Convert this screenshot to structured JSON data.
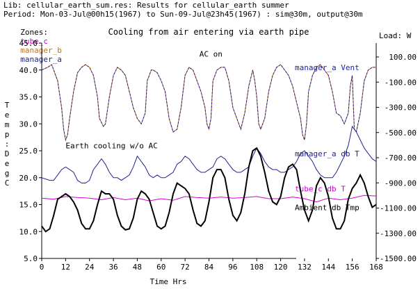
{
  "header": {
    "lib_line": "Lib: cellular_earth_sum.res: Results for cellular_earth summer",
    "period_line": "Period: Mon-03-Jul@00h15(1967) to Sun-09-Jul@23h45(1967) : sim@30m, output@30m",
    "zones_label": "Zones:",
    "zones": [
      {
        "name": "tube_c",
        "color": "#d000d0"
      },
      {
        "name": "manager_b",
        "color": "#c07020"
      },
      {
        "name": "manager_a",
        "color": "#202090"
      }
    ]
  },
  "chart_data": {
    "type": "line",
    "title": "Cooling from air entering via earth pipe",
    "xlabel": "Time Hrs",
    "ylabel": "Temp: DegC",
    "y2label": "Load: W",
    "xlim": [
      0,
      168
    ],
    "ylim": [
      5,
      45
    ],
    "y2lim": [
      -1500,
      100
    ],
    "xticks": [
      0,
      12,
      24,
      36,
      48,
      60,
      72,
      84,
      96,
      108,
      120,
      132,
      144,
      156,
      168
    ],
    "yticks": [
      "5.0",
      "10.0",
      "15.0",
      "20.0",
      "25.0",
      "30.0",
      "35.0",
      "40.0",
      "45.0"
    ],
    "y2ticks": [
      "100.00",
      "-100.00",
      "-300.00",
      "-500.00",
      "-700.00",
      "-900.00",
      "-1100.00",
      "-1300.00",
      "-1500.00"
    ],
    "annotations": [
      {
        "text": "AC on",
        "x": 85,
        "y": 43
      },
      {
        "text": "Earth cooling w/o AC",
        "x": 12,
        "y": 26
      }
    ],
    "series": [
      {
        "name": "manager_a Vent",
        "color": "#2020a0",
        "dash": true,
        "label_y": 40.5,
        "x": [
          0,
          3,
          5,
          6,
          8,
          10,
          11,
          12,
          13,
          14,
          16,
          18,
          20,
          22,
          24,
          26,
          28,
          29,
          31,
          32,
          34,
          36,
          38,
          40,
          42,
          44,
          46,
          48,
          50,
          52,
          53,
          55,
          56,
          58,
          60,
          62,
          64,
          66,
          68,
          70,
          72,
          74,
          76,
          78,
          80,
          82,
          83,
          84,
          85,
          86,
          88,
          90,
          92,
          94,
          96,
          98,
          100,
          102,
          104,
          106,
          107,
          108,
          109,
          110,
          112,
          114,
          116,
          118,
          120,
          122,
          124,
          126,
          128,
          130,
          131,
          132,
          133,
          134,
          136,
          138,
          140,
          142,
          144,
          146,
          148,
          150,
          152,
          154,
          155,
          156,
          157,
          158,
          160,
          162,
          164,
          166,
          168
        ],
        "y": [
          40,
          40.5,
          41,
          40,
          38,
          33,
          29,
          27,
          28,
          31,
          36,
          39.5,
          40.5,
          41,
          40.5,
          39,
          35,
          31,
          29.5,
          30,
          35,
          39,
          40.5,
          40,
          39,
          36,
          33,
          31,
          30,
          32,
          38,
          40,
          40,
          39.5,
          38,
          36,
          31,
          28.5,
          29,
          33,
          39,
          40.5,
          40,
          38,
          36,
          33,
          30,
          29,
          31,
          38,
          40,
          40.5,
          40.5,
          38,
          33,
          31,
          29,
          32,
          37,
          40,
          38,
          35,
          30,
          29,
          31,
          36,
          39,
          40.5,
          41,
          40,
          39,
          37,
          34,
          31,
          28,
          27,
          30,
          36,
          39,
          40.5,
          41,
          40,
          39,
          36,
          32,
          31.5,
          30,
          32,
          37,
          39,
          29,
          28.5,
          32,
          38,
          40,
          40.5,
          40.5
        ]
      },
      {
        "name": "manager_a db T",
        "color": "#202090",
        "dash": false,
        "label_y": 24.5,
        "x": [
          0,
          4,
          6,
          8,
          10,
          12,
          14,
          16,
          18,
          20,
          22,
          24,
          26,
          28,
          30,
          32,
          34,
          36,
          38,
          40,
          42,
          44,
          46,
          48,
          50,
          52,
          54,
          56,
          58,
          60,
          62,
          64,
          66,
          68,
          70,
          72,
          74,
          76,
          78,
          80,
          82,
          84,
          86,
          88,
          90,
          92,
          94,
          96,
          98,
          100,
          102,
          104,
          106,
          108,
          110,
          112,
          114,
          116,
          118,
          120,
          122,
          124,
          126,
          128,
          130,
          132,
          134,
          136,
          138,
          140,
          142,
          144,
          146,
          148,
          150,
          152,
          154,
          156,
          158,
          160,
          162,
          164,
          166,
          168
        ],
        "y": [
          20,
          19.5,
          19.5,
          20.5,
          21.5,
          22,
          21.5,
          21,
          19.5,
          19,
          19,
          19.5,
          21.5,
          22.5,
          23.5,
          22.5,
          21,
          20,
          20,
          19.5,
          20,
          20.5,
          22,
          24,
          23,
          22,
          20.5,
          20,
          20.5,
          20,
          20,
          20.5,
          21,
          22.5,
          23,
          24,
          23.5,
          22.5,
          21.5,
          21,
          21,
          21.5,
          22,
          23.5,
          24,
          23.5,
          22.5,
          21.5,
          21,
          21,
          21.5,
          22,
          24,
          25.5,
          24.5,
          23,
          22,
          21.5,
          21.5,
          21,
          21,
          21.5,
          22,
          23,
          24.5,
          25,
          24,
          23,
          21.5,
          20.5,
          20,
          20,
          20,
          21,
          22.5,
          24,
          26,
          29.5,
          28.5,
          27,
          25.5,
          24.5,
          23.5,
          23
        ]
      },
      {
        "name": "tube_c db T",
        "color": "#d000d0",
        "dash": false,
        "label_y": 18,
        "x": [
          0,
          6,
          12,
          18,
          24,
          30,
          36,
          42,
          48,
          54,
          60,
          66,
          72,
          78,
          84,
          90,
          96,
          102,
          108,
          114,
          120,
          126,
          132,
          138,
          144,
          150,
          156,
          162,
          168
        ],
        "y": [
          16.2,
          16,
          16.5,
          16.3,
          16.2,
          15.9,
          16.3,
          15.9,
          16.2,
          15.7,
          16.1,
          15.8,
          16.5,
          16.3,
          16.2,
          16.4,
          16.2,
          16.3,
          16.5,
          16.1,
          16.1,
          16.4,
          16.1,
          15.5,
          16.2,
          15.9,
          16.2,
          16.7,
          16.6
        ]
      },
      {
        "name": "Ambient db Tmp",
        "color": "#000000",
        "dash": false,
        "label_y": 14.5,
        "x": [
          0,
          2,
          4,
          6,
          8,
          10,
          12,
          14,
          16,
          18,
          20,
          22,
          24,
          26,
          28,
          30,
          32,
          34,
          36,
          38,
          40,
          42,
          44,
          46,
          48,
          50,
          52,
          54,
          56,
          58,
          60,
          62,
          64,
          66,
          68,
          70,
          72,
          74,
          76,
          78,
          80,
          82,
          84,
          86,
          88,
          90,
          92,
          94,
          96,
          98,
          100,
          102,
          104,
          106,
          108,
          110,
          112,
          114,
          116,
          118,
          120,
          122,
          124,
          126,
          128,
          130,
          132,
          134,
          136,
          138,
          140,
          142,
          144,
          146,
          148,
          150,
          152,
          154,
          156,
          158,
          160,
          162,
          164,
          166,
          168
        ],
        "y": [
          11,
          10,
          10.5,
          13,
          16,
          16.5,
          17,
          16.5,
          15.5,
          14,
          11.5,
          10.5,
          10.5,
          12,
          15,
          17.5,
          17,
          17,
          16,
          13,
          11,
          10.3,
          10.5,
          12.5,
          16,
          17.5,
          17,
          16,
          13.5,
          11,
          10.5,
          11,
          13.5,
          17,
          19,
          18.5,
          18,
          17,
          14,
          11.5,
          11,
          12,
          15.5,
          20,
          21.5,
          21.5,
          20,
          16,
          13,
          12,
          13.5,
          17,
          22,
          25,
          25.5,
          24,
          21,
          17.5,
          15.5,
          15,
          16.5,
          20,
          22,
          22.5,
          21.5,
          17.5,
          14,
          12,
          14,
          18.5,
          20,
          19,
          16.5,
          12.5,
          10.5,
          10.5,
          12,
          16,
          18,
          19,
          20.5,
          19,
          16.5,
          14.5,
          15
        ]
      }
    ]
  }
}
